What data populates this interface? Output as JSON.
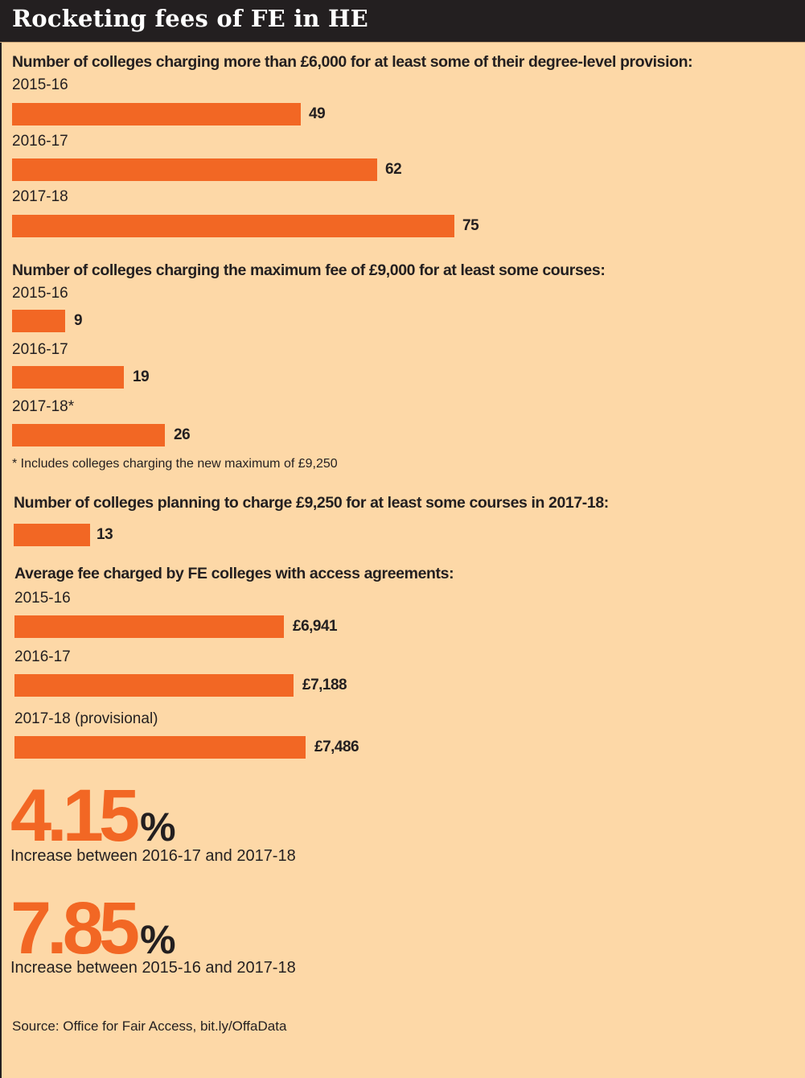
{
  "header": {
    "title": "Rocketing fees of FE in HE"
  },
  "colors": {
    "accent": "#f26724",
    "background": "#fdd8a7",
    "header": "#231f20",
    "text": "#231f20"
  },
  "chart_data": [
    {
      "type": "bar",
      "orientation": "horizontal",
      "title": "Number of colleges charging more than £6,000 for at least some of their degree-level provision:",
      "categories": [
        "2015-16",
        "2016-17",
        "2017-18"
      ],
      "values": [
        49,
        62,
        75
      ],
      "labels": [
        "49",
        "62",
        "75"
      ]
    },
    {
      "type": "bar",
      "orientation": "horizontal",
      "title": "Number of colleges charging the maximum fee of £9,000 for at least some courses:",
      "categories": [
        "2015-16",
        "2016-17",
        "2017-18*"
      ],
      "values": [
        9,
        19,
        26
      ],
      "labels": [
        "9",
        "19",
        "26"
      ],
      "footnote": "* Includes colleges charging the new maximum of £9,250"
    },
    {
      "type": "bar",
      "orientation": "horizontal",
      "title": "Number of colleges planning to charge £9,250 for at least some courses in 2017-18:",
      "categories": [
        ""
      ],
      "values": [
        13
      ],
      "labels": [
        "13"
      ]
    },
    {
      "type": "bar",
      "orientation": "horizontal",
      "title": "Average fee charged by FE colleges with access agreements:",
      "categories": [
        "2015-16",
        "2016-17",
        "2017-18 (provisional)"
      ],
      "values": [
        6941,
        7188,
        7486
      ],
      "labels": [
        "£6,941",
        "£7,188",
        "£7,486"
      ]
    }
  ],
  "stats": [
    {
      "number": "4.15",
      "unit": "%",
      "caption": "Increase between 2016-17 and 2017-18"
    },
    {
      "number": "7.85",
      "unit": "%",
      "caption": "Increase between 2015-16 and 2017-18"
    }
  ],
  "source": "Source: Office for Fair Access, bit.ly/OffaData"
}
